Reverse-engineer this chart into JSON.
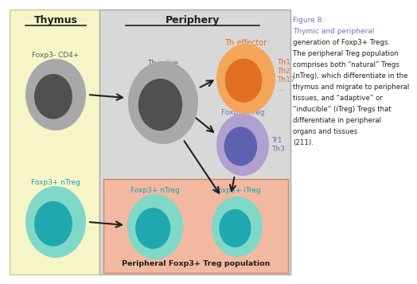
{
  "thymus_bg": "#f5f5c8",
  "periphery_bg": "#d8d8d8",
  "salmon_bg": "#f2b8a0",
  "figure_bg": "#ffffff",
  "thymus_label": "Thymus",
  "periphery_label": "Periphery",
  "peripheral_pop_label": "Peripheral Foxp3+ Treg population",
  "foxp3_cd4_label": "Foxp3- CD4+",
  "th_naive_label": "Th naïve",
  "th_effector_label": "Th effector",
  "th_subtypes": "Th1\nTh2\nTh17\n...",
  "foxp3_itreg_label": "Foxp3- iTreg",
  "itreg_subtypes": "Tr1\nTh3",
  "foxp3_ntreg_thymus_label": "Foxp3+ nTreg",
  "foxp3_ntreg_periph_label": "Foxp3+ nTreg",
  "foxp3_itreg_periph_label": "Foxp3+ iTreg",
  "orange_outer": "#f5a55a",
  "orange_inner": "#e07020",
  "purple_outer": "#b0a0d0",
  "purple_inner": "#6060b0",
  "gray_outer": "#a8a8a8",
  "gray_inner": "#505050",
  "teal_outer": "#80d8c8",
  "teal_inner": "#20a8b0",
  "label_color_orange": "#e07020",
  "label_color_purple": "#7070b8",
  "label_color_teal": "#20a0b0",
  "label_color_gray": "#606060",
  "arrow_color": "#202020",
  "title_color": "#7070c0",
  "caption_lines": [
    [
      "Figure 8:",
      true
    ],
    [
      "Thymic and peripheral",
      true
    ],
    [
      "generation of Foxp3+ Tregs.",
      false
    ],
    [
      "The peripheral Treg population",
      false
    ],
    [
      "comprises both “natural” Tregs",
      false
    ],
    [
      "(nTreg), which differentiate in the",
      false
    ],
    [
      "thymus and migrate to peripheral",
      false
    ],
    [
      "tissues, and “adaptive” or",
      false
    ],
    [
      "“inducible” (iTreg) Tregs that",
      false
    ],
    [
      "differentiate in peripheral",
      false
    ],
    [
      "organs and tissues",
      false
    ],
    [
      "(211).",
      false
    ]
  ]
}
